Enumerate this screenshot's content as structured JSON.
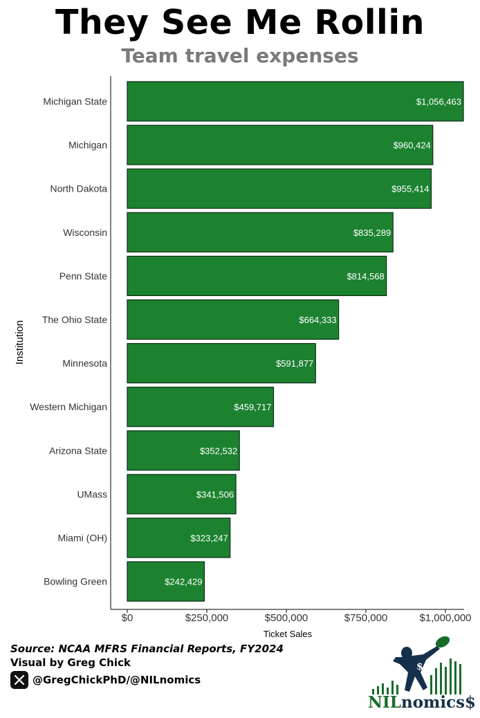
{
  "title": "They See Me Rollin",
  "subtitle": "Team travel expenses",
  "chart_data": {
    "type": "bar",
    "orientation": "horizontal",
    "categories": [
      "Michigan State",
      "Michigan",
      "North Dakota",
      "Wisconsin",
      "Penn State",
      "The Ohio State",
      "Minnesota",
      "Western Michigan",
      "Arizona State",
      "UMass",
      "Miami (OH)",
      "Bowling Green"
    ],
    "values": [
      1056463,
      960424,
      955414,
      835289,
      814568,
      664333,
      591877,
      459717,
      352532,
      341506,
      323247,
      242429
    ],
    "data_labels": [
      "$1,056,463",
      "$960,424",
      "$955,414",
      "$835,289",
      "$814,568",
      "$664,333",
      "$591,877",
      "$459,717",
      "$352,532",
      "$341,506",
      "$323,247",
      "$242,429"
    ],
    "xlabel": "Ticket Sales",
    "ylabel": "Institution",
    "xlim": [
      0,
      1100000
    ],
    "x_ticks": [
      0,
      250000,
      500000,
      750000,
      1000000
    ],
    "x_tick_labels": [
      "$0",
      "$250,000",
      "$500,000",
      "$750,000",
      "$1,000,000"
    ],
    "bar_color": "#1c8230",
    "bar_border_color": "#0d2a12",
    "grid": false
  },
  "footer": {
    "source": "Source: NCAA MFRS Financial Reports, FY2024",
    "credit": "Visual by Greg Chick",
    "handle": "@GregChickPhD/@NILnomics",
    "social_icon": "x-logo-icon"
  },
  "logo": {
    "text_part1": "NIL",
    "text_part2": "nomics$",
    "icon": "football-player-catch-icon",
    "colors": {
      "green": "#1a6b2a",
      "navy": "#15304a"
    }
  }
}
